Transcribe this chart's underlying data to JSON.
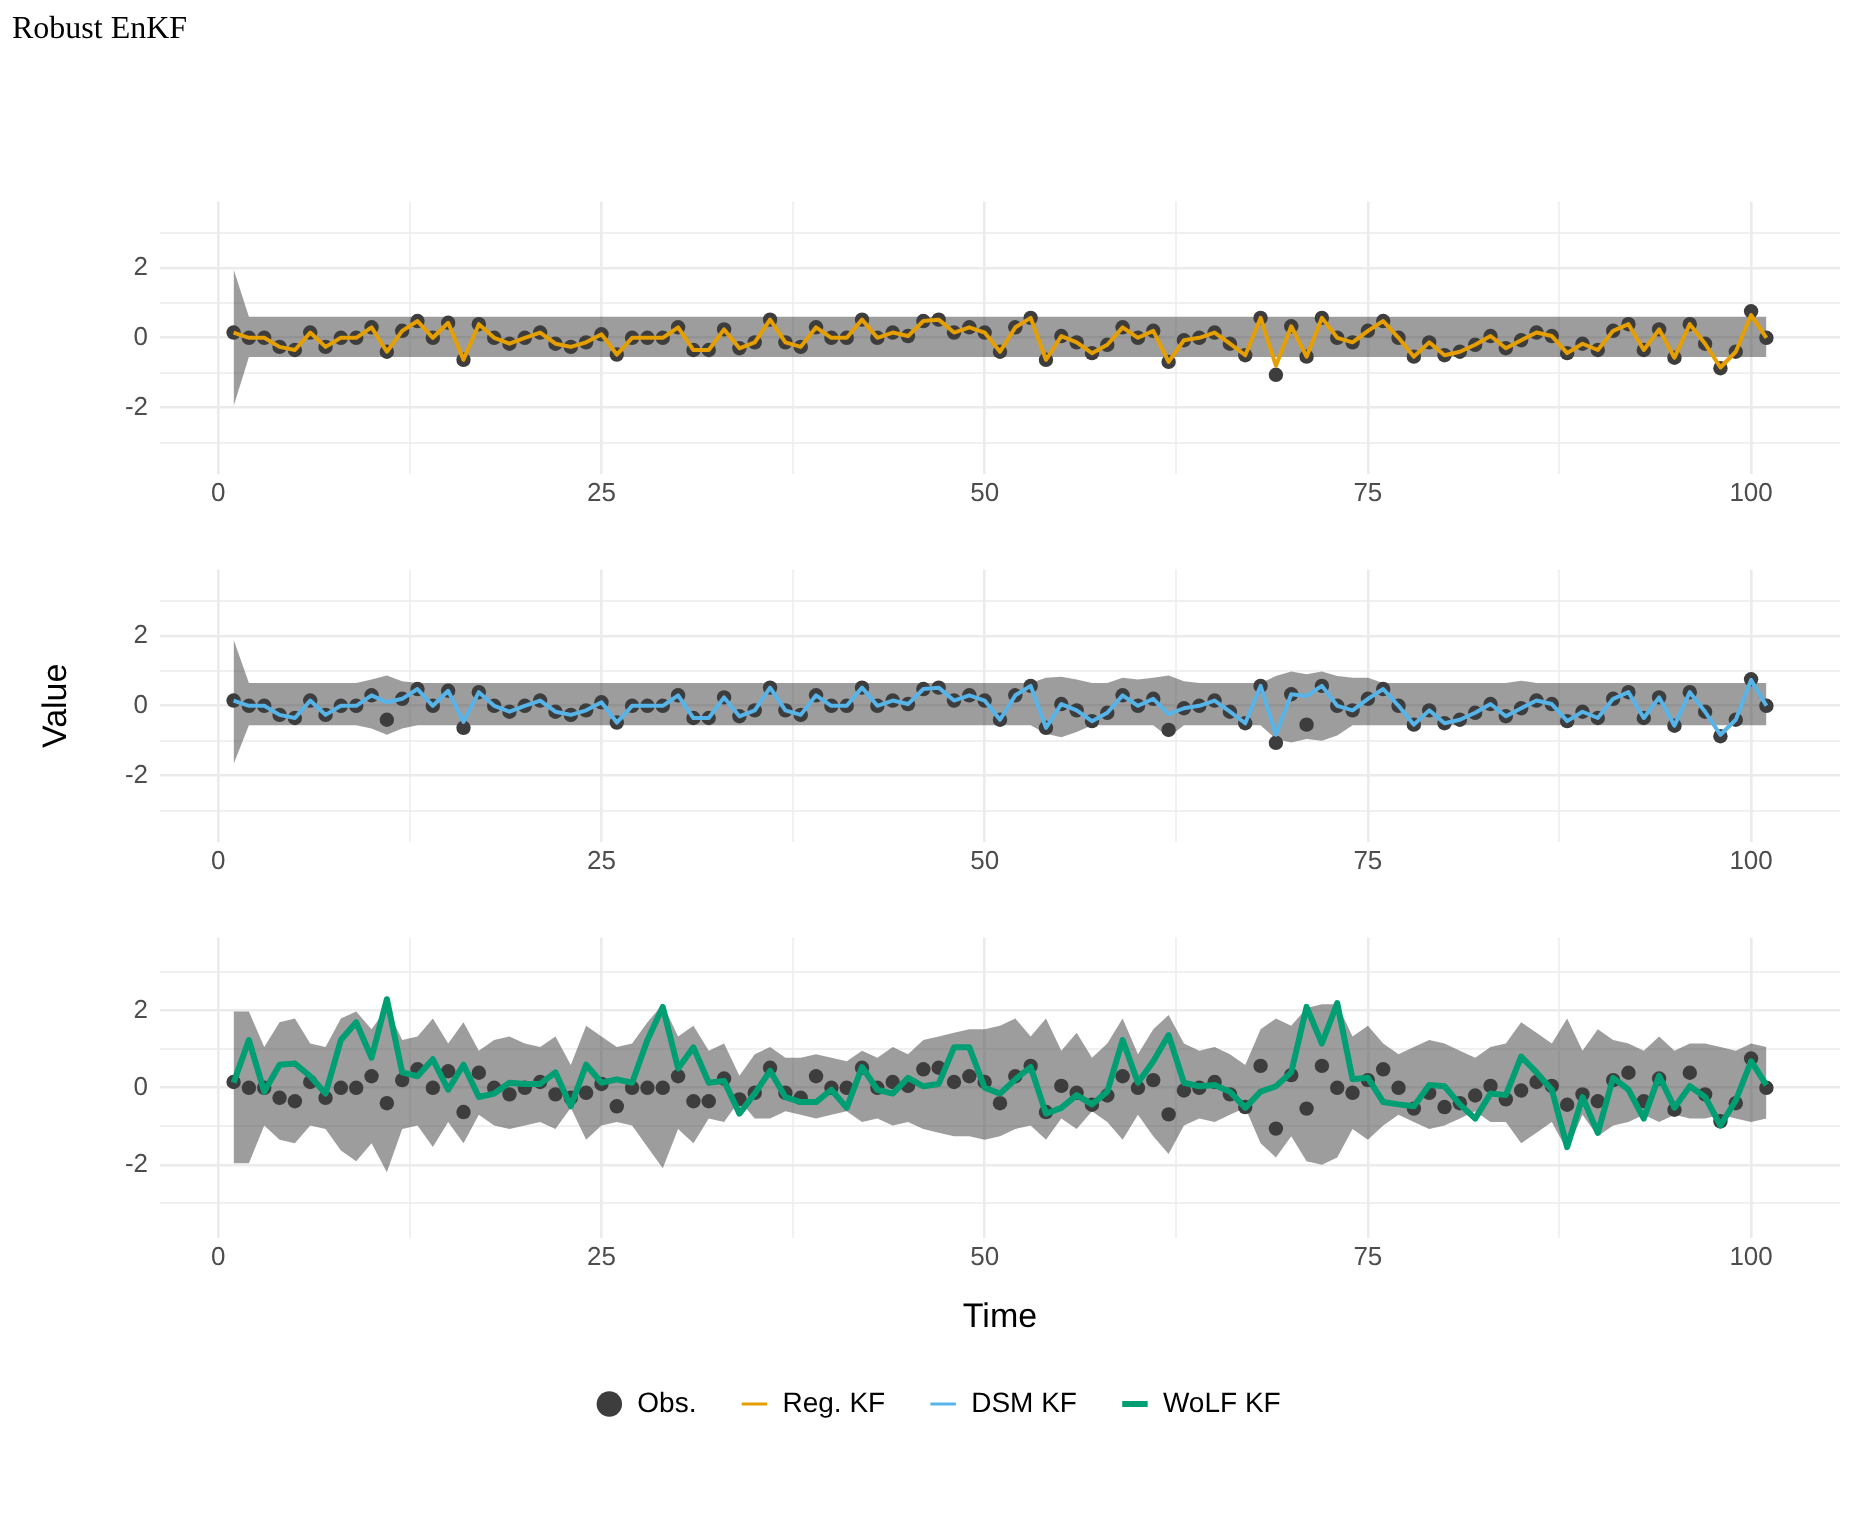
{
  "chart_data": [
    {
      "type": "line",
      "title": "Robust EnKF",
      "x": [
        1,
        2,
        3,
        4,
        5,
        6,
        7,
        8,
        9,
        10,
        11,
        12,
        13,
        14,
        15,
        16,
        17,
        18,
        19,
        20,
        21,
        22,
        23,
        24,
        25,
        26,
        27,
        28,
        29,
        30,
        31,
        32,
        33,
        34,
        35,
        36,
        37,
        38,
        39,
        40,
        41,
        42,
        43,
        44,
        45,
        46,
        47,
        48,
        49,
        50,
        51,
        52,
        53,
        54,
        55,
        56,
        57,
        58,
        59,
        60,
        61,
        62,
        63,
        64,
        65,
        66,
        67,
        68,
        69,
        70,
        71,
        72,
        73,
        74,
        75,
        76,
        77,
        78,
        79,
        80,
        81,
        82,
        83,
        84,
        85,
        86,
        87,
        88,
        89,
        90,
        91,
        92,
        93,
        94,
        95,
        96,
        97,
        98,
        99,
        100,
        101
      ],
      "xlim": [
        -3.8,
        105.8
      ],
      "xticks": [
        0,
        {
          "value": 12.5,
          "label": null
        },
        25,
        {
          "value": 37.5,
          "label": null
        },
        50,
        {
          "value": 62.5,
          "label": null
        },
        75,
        {
          "value": 87.5,
          "label": null
        },
        100
      ],
      "ylim": [
        -3.9,
        3.9
      ],
      "yticks": [
        {
          "value": -3,
          "label": null
        },
        -2,
        {
          "value": -1,
          "label": null
        },
        0,
        {
          "value": 1,
          "label": null
        },
        2,
        {
          "value": 3,
          "label": null
        }
      ],
      "grid": true,
      "series": [
        {
          "type": "scatter",
          "color": "#3d3d3d",
          "values": [
            0.15,
            0,
            0,
            -0.26,
            -0.35,
            0.15,
            -0.26,
            0,
            0,
            0.3,
            -0.4,
            0.2,
            0.48,
            0,
            0.43,
            -0.63,
            0.39,
            0,
            -0.17,
            0,
            0.15,
            -0.17,
            -0.26,
            -0.13,
            0.1,
            -0.48,
            0,
            0,
            0,
            0.3,
            -0.35,
            -0.35,
            0.24,
            -0.3,
            -0.13,
            0.52,
            -0.13,
            -0.26,
            0.3,
            0,
            0,
            0.52,
            0,
            0.15,
            0.05,
            0.48,
            0.52,
            0.15,
            0.3,
            0.15,
            -0.4,
            0.3,
            0.57,
            -0.63,
            0.05,
            -0.13,
            -0.44,
            -0.2,
            0.3,
            0,
            0.2,
            -0.69,
            -0.07,
            0,
            0.15,
            -0.17,
            -0.5,
            0.57,
            -1.06,
            0.33,
            -0.54,
            0.57,
            0,
            -0.13,
            0.2,
            0.48,
            0,
            -0.54,
            -0.13,
            -0.5,
            -0.4,
            -0.2,
            0.05,
            -0.3,
            -0.07,
            0.15,
            0.05,
            -0.44,
            -0.17,
            -0.35,
            0.2,
            0.39,
            -0.35,
            0.24,
            -0.57,
            0.39,
            -0.17,
            -0.87,
            -0.4,
            0.76,
            0
          ]
        },
        {
          "name": "Reg. KF",
          "color": "#e69f00",
          "values": [
            0.15,
            0,
            0,
            -0.26,
            -0.35,
            0.15,
            -0.26,
            0,
            0,
            0.3,
            -0.4,
            0.2,
            0.48,
            0,
            0.43,
            -0.63,
            0.39,
            0,
            -0.17,
            0,
            0.15,
            -0.17,
            -0.26,
            -0.13,
            0.1,
            -0.48,
            0,
            0,
            0,
            0.3,
            -0.35,
            -0.35,
            0.24,
            -0.3,
            -0.13,
            0.52,
            -0.13,
            -0.26,
            0.3,
            0,
            0,
            0.52,
            0,
            0.15,
            0.05,
            0.48,
            0.52,
            0.15,
            0.3,
            0.15,
            -0.4,
            0.3,
            0.57,
            -0.63,
            0.05,
            -0.13,
            -0.44,
            -0.2,
            0.3,
            0,
            0.2,
            -0.69,
            -0.07,
            0,
            0.15,
            -0.17,
            -0.5,
            0.57,
            -0.8,
            0.33,
            -0.54,
            0.57,
            0,
            -0.13,
            0.2,
            0.48,
            0,
            -0.54,
            -0.13,
            -0.5,
            -0.4,
            -0.2,
            0.05,
            -0.3,
            -0.07,
            0.15,
            0.05,
            -0.44,
            -0.17,
            -0.35,
            0.2,
            0.39,
            -0.35,
            0.24,
            -0.57,
            0.39,
            -0.17,
            -0.85,
            -0.4,
            0.65,
            0
          ],
          "upper": [
            1.96,
            0.6,
            0.6,
            0.6,
            0.6,
            0.6,
            0.6,
            0.6,
            0.6,
            0.6,
            0.6,
            0.6,
            0.6,
            0.6,
            0.6,
            0.6,
            0.6,
            0.6,
            0.6,
            0.6,
            0.6,
            0.6,
            0.6,
            0.6,
            0.6,
            0.6,
            0.6,
            0.6,
            0.6,
            0.6,
            0.6,
            0.6,
            0.6,
            0.6,
            0.6,
            0.6,
            0.6,
            0.6,
            0.6,
            0.6,
            0.6,
            0.6,
            0.6,
            0.6,
            0.6,
            0.6,
            0.6,
            0.6,
            0.6,
            0.6,
            0.6,
            0.6,
            0.6,
            0.6,
            0.6,
            0.6,
            0.6,
            0.6,
            0.6,
            0.6,
            0.6,
            0.6,
            0.6,
            0.6,
            0.6,
            0.6,
            0.6,
            0.6,
            0.6,
            0.6,
            0.6,
            0.6,
            0.6,
            0.6,
            0.6,
            0.6,
            0.6,
            0.6,
            0.6,
            0.6,
            0.6,
            0.6,
            0.6,
            0.6,
            0.6,
            0.6,
            0.6,
            0.6,
            0.6,
            0.6,
            0.6,
            0.6,
            0.6,
            0.6,
            0.6,
            0.6,
            0.6,
            0.6,
            0.6,
            0.6,
            0.6
          ],
          "lower": [
            -1.96,
            -0.55,
            -0.55,
            -0.55,
            -0.55,
            -0.55,
            -0.55,
            -0.55,
            -0.55,
            -0.55,
            -0.55,
            -0.55,
            -0.55,
            -0.55,
            -0.55,
            -0.55,
            -0.55,
            -0.55,
            -0.55,
            -0.55,
            -0.55,
            -0.55,
            -0.55,
            -0.55,
            -0.55,
            -0.55,
            -0.55,
            -0.55,
            -0.55,
            -0.55,
            -0.55,
            -0.55,
            -0.55,
            -0.55,
            -0.55,
            -0.55,
            -0.55,
            -0.55,
            -0.55,
            -0.55,
            -0.55,
            -0.55,
            -0.55,
            -0.55,
            -0.55,
            -0.55,
            -0.55,
            -0.55,
            -0.55,
            -0.55,
            -0.55,
            -0.55,
            -0.55,
            -0.55,
            -0.55,
            -0.55,
            -0.55,
            -0.55,
            -0.55,
            -0.55,
            -0.55,
            -0.55,
            -0.55,
            -0.55,
            -0.55,
            -0.55,
            -0.55,
            -0.55,
            -0.55,
            -0.55,
            -0.55,
            -0.55,
            -0.55,
            -0.55,
            -0.55,
            -0.55,
            -0.55,
            -0.55,
            -0.55,
            -0.55,
            -0.55,
            -0.55,
            -0.55,
            -0.55,
            -0.55,
            -0.55,
            -0.55,
            -0.55,
            -0.55,
            -0.55,
            -0.55,
            -0.55,
            -0.55,
            -0.55,
            -0.55,
            -0.55,
            -0.55,
            -0.55,
            -0.55,
            -0.55,
            -0.55
          ]
        }
      ]
    },
    {
      "type": "line",
      "ylabel": "Value",
      "x": [
        1,
        2,
        3,
        4,
        5,
        6,
        7,
        8,
        9,
        10,
        11,
        12,
        13,
        14,
        15,
        16,
        17,
        18,
        19,
        20,
        21,
        22,
        23,
        24,
        25,
        26,
        27,
        28,
        29,
        30,
        31,
        32,
        33,
        34,
        35,
        36,
        37,
        38,
        39,
        40,
        41,
        42,
        43,
        44,
        45,
        46,
        47,
        48,
        49,
        50,
        51,
        52,
        53,
        54,
        55,
        56,
        57,
        58,
        59,
        60,
        61,
        62,
        63,
        64,
        65,
        66,
        67,
        68,
        69,
        70,
        71,
        72,
        73,
        74,
        75,
        76,
        77,
        78,
        79,
        80,
        81,
        82,
        83,
        84,
        85,
        86,
        87,
        88,
        89,
        90,
        91,
        92,
        93,
        94,
        95,
        96,
        97,
        98,
        99,
        100,
        101
      ],
      "xlim": [
        -3.8,
        105.8
      ],
      "xticks": [
        0,
        {
          "value": 12.5,
          "label": null
        },
        25,
        {
          "value": 37.5,
          "label": null
        },
        50,
        {
          "value": 62.5,
          "label": null
        },
        75,
        {
          "value": 87.5,
          "label": null
        },
        100
      ],
      "ylim": [
        -3.9,
        3.9
      ],
      "yticks": [
        {
          "value": -3,
          "label": null
        },
        -2,
        {
          "value": -1,
          "label": null
        },
        0,
        {
          "value": 1,
          "label": null
        },
        2,
        {
          "value": 3,
          "label": null
        }
      ],
      "grid": true,
      "series": [
        {
          "type": "scatter",
          "color": "#3d3d3d",
          "values": [
            0.15,
            0,
            0,
            -0.26,
            -0.35,
            0.15,
            -0.26,
            0,
            0,
            0.3,
            -0.4,
            0.2,
            0.48,
            0,
            0.43,
            -0.63,
            0.39,
            0,
            -0.17,
            0,
            0.15,
            -0.17,
            -0.26,
            -0.13,
            0.1,
            -0.48,
            0,
            0,
            0,
            0.3,
            -0.35,
            -0.35,
            0.24,
            -0.3,
            -0.13,
            0.52,
            -0.13,
            -0.26,
            0.3,
            0,
            0,
            0.52,
            0,
            0.15,
            0.05,
            0.48,
            0.52,
            0.15,
            0.3,
            0.15,
            -0.4,
            0.3,
            0.57,
            -0.63,
            0.05,
            -0.13,
            -0.44,
            -0.2,
            0.3,
            0,
            0.2,
            -0.69,
            -0.07,
            0,
            0.15,
            -0.17,
            -0.5,
            0.57,
            -1.06,
            0.33,
            -0.54,
            0.57,
            0,
            -0.13,
            0.2,
            0.48,
            0,
            -0.54,
            -0.13,
            -0.5,
            -0.4,
            -0.2,
            0.05,
            -0.3,
            -0.07,
            0.15,
            0.05,
            -0.44,
            -0.17,
            -0.35,
            0.2,
            0.39,
            -0.35,
            0.24,
            -0.57,
            0.39,
            -0.17,
            -0.87,
            -0.4,
            0.76,
            0
          ]
        },
        {
          "name": "DSM KF",
          "color": "#56b4e9",
          "values": [
            0.15,
            0,
            0,
            -0.26,
            -0.35,
            0.15,
            -0.26,
            0,
            0,
            0.3,
            0.1,
            0.2,
            0.48,
            0,
            0.43,
            -0.46,
            0.39,
            0,
            -0.17,
            0,
            0.15,
            -0.17,
            -0.26,
            -0.13,
            0.1,
            -0.48,
            0,
            0,
            0,
            0.3,
            -0.35,
            -0.35,
            0.24,
            -0.3,
            -0.13,
            0.52,
            -0.13,
            -0.26,
            0.3,
            0,
            0,
            0.52,
            0,
            0.15,
            0.05,
            0.48,
            0.52,
            0.15,
            0.3,
            0.15,
            -0.4,
            0.3,
            0.57,
            -0.63,
            0.05,
            -0.13,
            -0.44,
            -0.2,
            0.3,
            0,
            0.2,
            -0.24,
            -0.07,
            0,
            0.15,
            -0.17,
            -0.5,
            0.57,
            -0.83,
            0.33,
            0.28,
            0.57,
            0,
            -0.13,
            0.2,
            0.48,
            0,
            -0.54,
            -0.13,
            -0.5,
            -0.4,
            -0.2,
            0.05,
            -0.3,
            -0.07,
            0.15,
            0.05,
            -0.44,
            -0.17,
            -0.35,
            0.2,
            0.39,
            -0.35,
            0.24,
            -0.57,
            0.39,
            -0.17,
            -0.83,
            -0.4,
            0.74,
            0
          ],
          "upper": [
            1.9,
            0.65,
            0.65,
            0.65,
            0.65,
            0.65,
            0.65,
            0.65,
            0.65,
            0.75,
            0.87,
            0.7,
            0.65,
            0.65,
            0.65,
            0.65,
            0.65,
            0.65,
            0.65,
            0.65,
            0.65,
            0.65,
            0.65,
            0.65,
            0.65,
            0.65,
            0.65,
            0.65,
            0.65,
            0.65,
            0.65,
            0.65,
            0.65,
            0.65,
            0.65,
            0.65,
            0.65,
            0.65,
            0.65,
            0.65,
            0.65,
            0.65,
            0.65,
            0.65,
            0.65,
            0.65,
            0.65,
            0.65,
            0.65,
            0.65,
            0.65,
            0.65,
            0.65,
            0.8,
            0.83,
            0.75,
            0.65,
            0.65,
            0.8,
            0.75,
            0.8,
            0.87,
            0.7,
            0.65,
            0.65,
            0.65,
            0.65,
            0.65,
            0.85,
            0.98,
            0.9,
            0.98,
            0.85,
            0.8,
            0.8,
            0.65,
            0.65,
            0.65,
            0.65,
            0.65,
            0.65,
            0.65,
            0.65,
            0.65,
            0.72,
            0.65,
            0.65,
            0.65,
            0.65,
            0.65,
            0.65,
            0.65,
            0.65,
            0.65,
            0.65,
            0.65,
            0.65,
            0.65,
            0.65,
            0.65,
            0.65
          ],
          "lower": [
            -1.67,
            -0.56,
            -0.56,
            -0.56,
            -0.56,
            -0.56,
            -0.56,
            -0.56,
            -0.56,
            -0.65,
            -0.83,
            -0.65,
            -0.56,
            -0.56,
            -0.56,
            -0.56,
            -0.56,
            -0.56,
            -0.56,
            -0.56,
            -0.56,
            -0.56,
            -0.56,
            -0.56,
            -0.56,
            -0.56,
            -0.56,
            -0.56,
            -0.56,
            -0.56,
            -0.56,
            -0.56,
            -0.56,
            -0.56,
            -0.56,
            -0.56,
            -0.56,
            -0.56,
            -0.56,
            -0.56,
            -0.56,
            -0.56,
            -0.56,
            -0.56,
            -0.56,
            -0.56,
            -0.56,
            -0.56,
            -0.56,
            -0.56,
            -0.56,
            -0.56,
            -0.56,
            -0.8,
            -0.9,
            -0.75,
            -0.56,
            -0.56,
            -0.56,
            -0.56,
            -0.56,
            -0.9,
            -0.56,
            -0.56,
            -0.56,
            -0.56,
            -0.56,
            -0.56,
            -0.95,
            -1.05,
            -0.95,
            -1,
            -0.85,
            -0.56,
            -0.56,
            -0.56,
            -0.56,
            -0.56,
            -0.56,
            -0.56,
            -0.56,
            -0.56,
            -0.56,
            -0.56,
            -0.56,
            -0.56,
            -0.56,
            -0.56,
            -0.56,
            -0.56,
            -0.56,
            -0.56,
            -0.56,
            -0.56,
            -0.56,
            -0.56,
            -0.56,
            -0.56,
            -0.56,
            -0.56,
            -0.56
          ]
        }
      ]
    },
    {
      "type": "line",
      "xlabel": "Time",
      "legend": "bottom",
      "x": [
        1,
        2,
        3,
        4,
        5,
        6,
        7,
        8,
        9,
        10,
        11,
        12,
        13,
        14,
        15,
        16,
        17,
        18,
        19,
        20,
        21,
        22,
        23,
        24,
        25,
        26,
        27,
        28,
        29,
        30,
        31,
        32,
        33,
        34,
        35,
        36,
        37,
        38,
        39,
        40,
        41,
        42,
        43,
        44,
        45,
        46,
        47,
        48,
        49,
        50,
        51,
        52,
        53,
        54,
        55,
        56,
        57,
        58,
        59,
        60,
        61,
        62,
        63,
        64,
        65,
        66,
        67,
        68,
        69,
        70,
        71,
        72,
        73,
        74,
        75,
        76,
        77,
        78,
        79,
        80,
        81,
        82,
        83,
        84,
        85,
        86,
        87,
        88,
        89,
        90,
        91,
        92,
        93,
        94,
        95,
        96,
        97,
        98,
        99,
        100,
        101
      ],
      "xlim": [
        -3.8,
        105.8
      ],
      "xticks": [
        0,
        {
          "value": 12.5,
          "label": null
        },
        25,
        {
          "value": 37.5,
          "label": null
        },
        50,
        {
          "value": 62.5,
          "label": null
        },
        75,
        {
          "value": 87.5,
          "label": null
        },
        100
      ],
      "ylim": [
        -3.9,
        3.9
      ],
      "yticks": [
        {
          "value": -3,
          "label": null
        },
        -2,
        {
          "value": -1,
          "label": null
        },
        0,
        {
          "value": 1,
          "label": null
        },
        2,
        {
          "value": 3,
          "label": null
        }
      ],
      "grid": true,
      "series": [
        {
          "name": "Obs.",
          "type": "scatter",
          "color": "#3d3d3d",
          "values": [
            0.15,
            0,
            0,
            -0.26,
            -0.35,
            0.15,
            -0.26,
            0,
            0,
            0.3,
            -0.4,
            0.2,
            0.48,
            0,
            0.43,
            -0.63,
            0.39,
            0,
            -0.17,
            0,
            0.15,
            -0.17,
            -0.26,
            -0.13,
            0.1,
            -0.48,
            0,
            0,
            0,
            0.3,
            -0.35,
            -0.35,
            0.24,
            -0.3,
            -0.13,
            0.52,
            -0.13,
            -0.26,
            0.3,
            0,
            0,
            0.52,
            0,
            0.15,
            0.05,
            0.48,
            0.52,
            0.15,
            0.3,
            0.15,
            -0.4,
            0.3,
            0.57,
            -0.63,
            0.05,
            -0.13,
            -0.44,
            -0.2,
            0.3,
            0,
            0.2,
            -0.69,
            -0.07,
            0,
            0.15,
            -0.17,
            -0.5,
            0.57,
            -1.06,
            0.33,
            -0.54,
            0.57,
            0,
            -0.13,
            0.2,
            0.48,
            0,
            -0.54,
            -0.13,
            -0.5,
            -0.4,
            -0.2,
            0.05,
            -0.3,
            -0.07,
            0.15,
            0.05,
            -0.44,
            -0.17,
            -0.35,
            0.2,
            0.39,
            -0.35,
            0.24,
            -0.57,
            0.39,
            -0.17,
            -0.87,
            -0.4,
            0.76,
            0
          ]
        },
        {
          "name": "WoLF KF",
          "color": "#009e73",
          "values": [
            0.13,
            1.24,
            -0.1,
            0.6,
            0.63,
            0.3,
            -0.15,
            1.24,
            1.7,
            0.78,
            2.3,
            0.4,
            0.3,
            0.74,
            -0.05,
            0.6,
            -0.24,
            -0.15,
            0.13,
            0.1,
            0.1,
            0.4,
            -0.48,
            0.6,
            0.13,
            0.22,
            0.13,
            1.24,
            2.1,
            0.5,
            1.05,
            0.13,
            0.18,
            -0.67,
            -0.15,
            0.44,
            -0.24,
            -0.37,
            -0.37,
            -0.05,
            -0.52,
            0.54,
            -0.05,
            -0.15,
            0.26,
            0.04,
            0.1,
            1.05,
            1.05,
            0,
            -0.15,
            0.22,
            0.54,
            -0.67,
            -0.52,
            -0.19,
            -0.43,
            -0.1,
            1.24,
            0.13,
            0.69,
            1.37,
            0.13,
            0.04,
            0.07,
            -0.1,
            -0.52,
            -0.1,
            0.04,
            0.4,
            2.1,
            1.15,
            2.2,
            0.22,
            0.26,
            -0.37,
            -0.43,
            -0.48,
            0.07,
            0.04,
            -0.43,
            -0.8,
            -0.15,
            -0.19,
            0.81,
            0.4,
            -0.05,
            -1.54,
            -0.24,
            -1.17,
            0.26,
            -0.05,
            -0.8,
            0.31,
            -0.52,
            0.04,
            -0.24,
            -0.98,
            -0.33,
            0.69,
            0.07
          ],
          "upper": [
            1.98,
            1.98,
            1.06,
            1.7,
            1.8,
            1.15,
            1.06,
            1.8,
            1.98,
            1.52,
            2.07,
            1.24,
            1.33,
            1.8,
            1.15,
            1.7,
            0.96,
            1.24,
            1.33,
            1.15,
            1.06,
            1.33,
            0.59,
            1.61,
            1.33,
            1.06,
            1.15,
            1.7,
            2.17,
            1.33,
            1.61,
            0.96,
            1.15,
            0.31,
            0.87,
            1.06,
            0.78,
            0.78,
            0.87,
            0.78,
            0.69,
            0.96,
            0.78,
            1.06,
            0.87,
            1.24,
            1.33,
            1.43,
            1.52,
            1.52,
            1.61,
            1.8,
            1.33,
            1.8,
            0.96,
            1.43,
            0.78,
            1.15,
            1.8,
            0.87,
            1.52,
            1.89,
            1.15,
            0.96,
            1.06,
            0.87,
            0.59,
            1.52,
            1.8,
            1.61,
            2.07,
            2.17,
            2.17,
            1.33,
            1.61,
            1.15,
            0.87,
            1.06,
            1.24,
            1.15,
            0.96,
            0.78,
            1.06,
            1.15,
            1.7,
            1.43,
            1.15,
            1.8,
            0.96,
            1.52,
            1.24,
            1.15,
            0.96,
            1.33,
            0.96,
            1.15,
            1.15,
            1.06,
            0.96,
            1.15,
            1.06
          ],
          "lower": [
            -1.96,
            -1.96,
            -0.98,
            -1.35,
            -1.44,
            -0.98,
            -1.07,
            -1.63,
            -1.91,
            -1.44,
            -2.19,
            -1.07,
            -0.98,
            -1.54,
            -0.89,
            -1.44,
            -0.7,
            -0.98,
            -1.07,
            -0.98,
            -0.89,
            -1.07,
            -0.52,
            -1.35,
            -0.98,
            -0.89,
            -0.98,
            -1.54,
            -2.09,
            -1.07,
            -1.44,
            -0.8,
            -0.89,
            -0.33,
            -0.8,
            -0.8,
            -0.61,
            -0.7,
            -0.8,
            -0.7,
            -0.61,
            -0.89,
            -0.8,
            -0.98,
            -0.89,
            -1.07,
            -1.17,
            -1.26,
            -1.26,
            -1.35,
            -1.26,
            -1.07,
            -0.98,
            -1.35,
            -0.8,
            -1.07,
            -0.61,
            -0.89,
            -1.35,
            -0.7,
            -1.26,
            -1.72,
            -0.98,
            -0.8,
            -0.89,
            -0.7,
            -0.52,
            -1.44,
            -1.81,
            -1.26,
            -1.91,
            -2,
            -1.81,
            -1.07,
            -1.35,
            -0.98,
            -0.7,
            -0.89,
            -1.07,
            -0.98,
            -0.8,
            -0.61,
            -0.89,
            -0.89,
            -1.44,
            -1.17,
            -0.89,
            -1.63,
            -0.7,
            -1.26,
            -0.98,
            -0.89,
            -0.7,
            -0.89,
            -0.7,
            -0.8,
            -0.8,
            -0.7,
            -0.8,
            -0.89,
            -0.8
          ]
        }
      ]
    }
  ]
}
